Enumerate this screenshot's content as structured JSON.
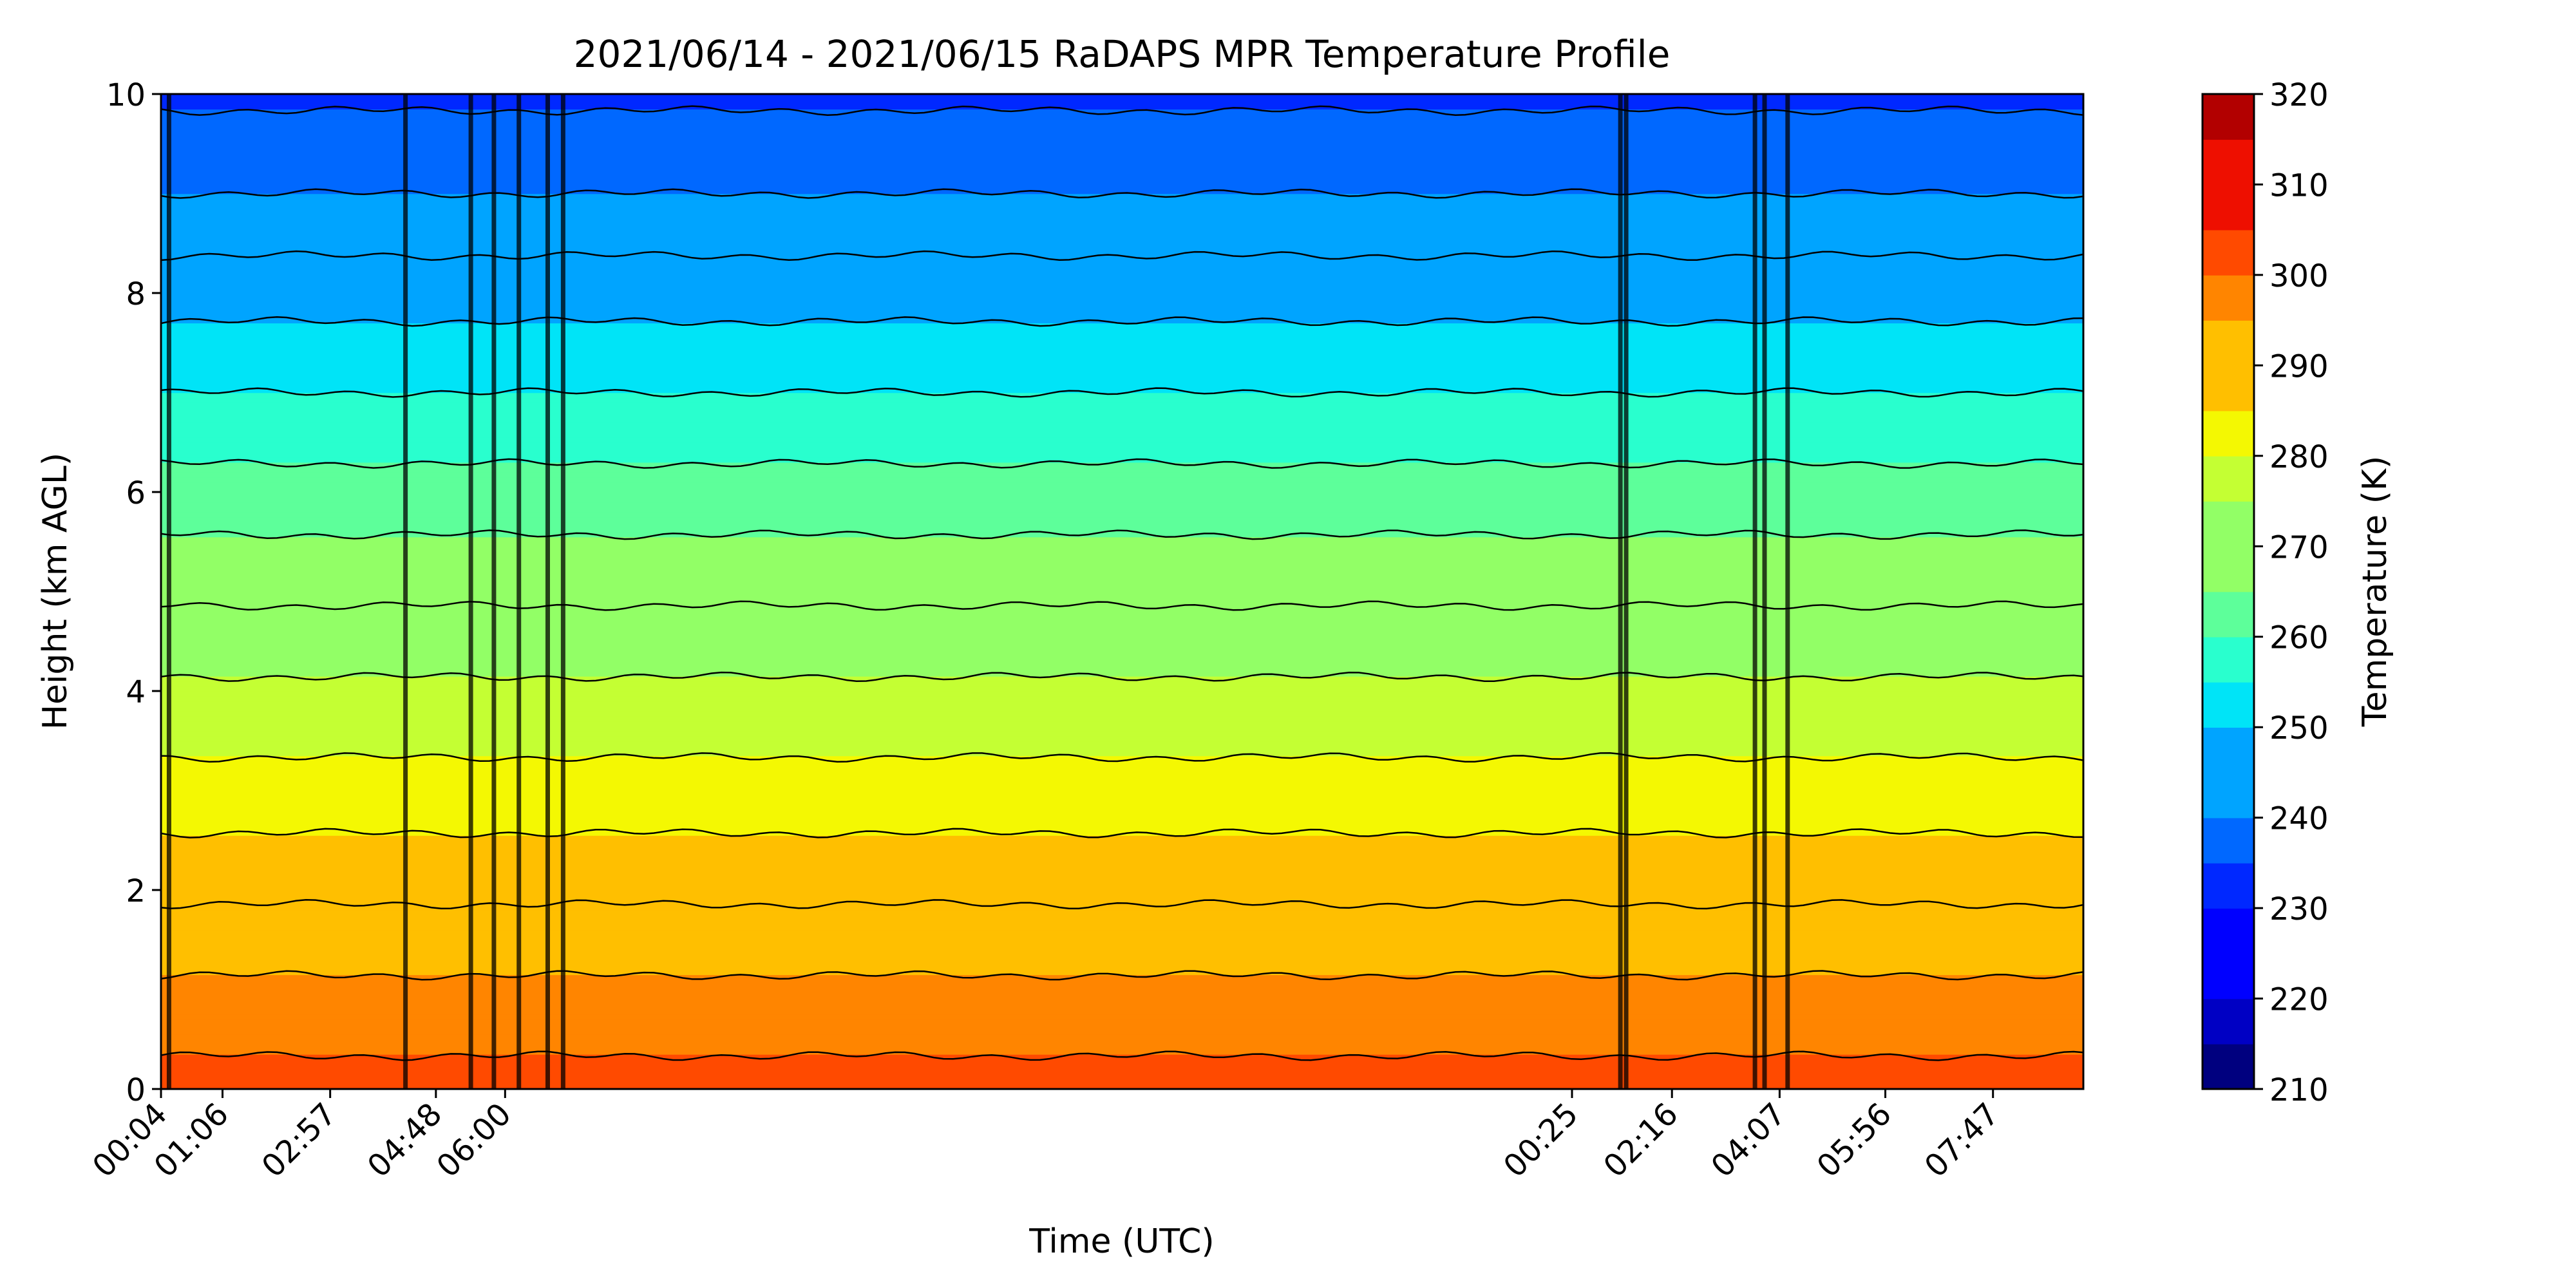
{
  "chart_data": {
    "type": "heatmap",
    "subtype": "filled-contour",
    "title": "2021/06/14 - 2021/06/15 RaDAPS MPR Temperature Profile",
    "xlabel": "Time (UTC)",
    "ylabel": "Height (km AGL)",
    "colorbar_label": "Temperature (K)",
    "colormap": "jet",
    "ylim": [
      0,
      10
    ],
    "y_ticks": [
      0,
      2,
      4,
      6,
      8,
      10
    ],
    "x_tick_labels": [
      "00:04",
      "01:06",
      "02:57",
      "04:48",
      "06:00",
      "00:25",
      "02:16",
      "04:07",
      "05:56",
      "07:47"
    ],
    "colorbar_range": [
      210,
      320
    ],
    "colorbar_ticks": [
      210,
      220,
      230,
      240,
      250,
      260,
      270,
      280,
      290,
      300,
      310,
      320
    ],
    "contour_interval": 5,
    "contour_levels": [
      210,
      215,
      220,
      225,
      230,
      235,
      240,
      245,
      250,
      255,
      260,
      265,
      270,
      275,
      280,
      285,
      290,
      295,
      300,
      305,
      310,
      315,
      320
    ],
    "level_colors": [
      "#00007f",
      "#0000c4",
      "#0000ff",
      "#0028ff",
      "#0068ff",
      "#00a4ff",
      "#00e4f7",
      "#29ffce",
      "#5dff9a",
      "#92ff66",
      "#c4ff33",
      "#f4f802",
      "#ffbf00",
      "#ff8500",
      "#ff4a00",
      "#ee0f00",
      "#b20000",
      "#7f0000"
    ],
    "approx_profile": {
      "heights_km": [
        0,
        1,
        2,
        3,
        4,
        5,
        6,
        7,
        8,
        9,
        10
      ],
      "temperature_K": [
        302,
        296,
        289,
        282,
        276,
        269,
        262,
        255,
        248,
        240,
        234
      ]
    }
  },
  "colors": {
    "contour_line": "#000000",
    "background": "#ffffff"
  }
}
